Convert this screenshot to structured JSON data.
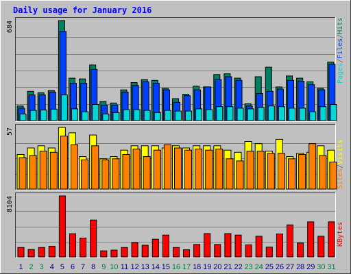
{
  "chart_data": [
    {
      "type": "bar",
      "title": "Daily usage for January 2016",
      "panel": "top",
      "categories": [
        "1",
        "2",
        "3",
        "4",
        "5",
        "6",
        "7",
        "8",
        "9",
        "10",
        "11",
        "12",
        "13",
        "14",
        "15",
        "16",
        "17",
        "18",
        "19",
        "20",
        "21",
        "22",
        "23",
        "24",
        "25",
        "26",
        "27",
        "28",
        "29",
        "30",
        "31"
      ],
      "y_max_label": "684",
      "ylim": [
        0,
        684
      ],
      "legend": [
        {
          "text": "Pages",
          "color": "#00d8d8"
        },
        {
          "text": "/",
          "color": "#606060"
        },
        {
          "text": "Files",
          "color": "#0040ff"
        },
        {
          "text": "/",
          "color": "#606060"
        },
        {
          "text": "Hits",
          "color": "#008060"
        }
      ],
      "series": [
        {
          "name": "Hits",
          "color": "#008060",
          "values": [
            100,
            200,
            190,
            205,
            684,
            290,
            285,
            380,
            130,
            120,
            210,
            260,
            280,
            275,
            220,
            150,
            180,
            235,
            230,
            315,
            320,
            290,
            115,
            300,
            365,
            230,
            305,
            290,
            265,
            220,
            400
          ]
        },
        {
          "name": "Files",
          "color": "#0040ff",
          "values": [
            85,
            175,
            175,
            195,
            610,
            255,
            255,
            350,
            105,
            105,
            195,
            240,
            265,
            255,
            210,
            125,
            170,
            210,
            230,
            280,
            300,
            275,
            100,
            185,
            200,
            215,
            275,
            270,
            245,
            210,
            385
          ]
        },
        {
          "name": "Pages",
          "color": "#00d8d8",
          "values": [
            45,
            70,
            72,
            78,
            175,
            80,
            60,
            110,
            45,
            55,
            75,
            75,
            70,
            55,
            70,
            65,
            65,
            80,
            75,
            95,
            95,
            85,
            80,
            90,
            100,
            95,
            85,
            85,
            60,
            95,
            110
          ]
        }
      ]
    },
    {
      "type": "bar",
      "panel": "middle",
      "categories": [
        "1",
        "2",
        "3",
        "4",
        "5",
        "6",
        "7",
        "8",
        "9",
        "10",
        "11",
        "12",
        "13",
        "14",
        "15",
        "16",
        "17",
        "18",
        "19",
        "20",
        "21",
        "22",
        "23",
        "24",
        "25",
        "26",
        "27",
        "28",
        "29",
        "30",
        "31"
      ],
      "y_max_label": "57",
      "ylim": [
        0,
        57
      ],
      "legend": [
        {
          "text": "Sites",
          "color": "#ff8000"
        },
        {
          "text": "/",
          "color": "#606060"
        },
        {
          "text": "Visits",
          "color": "#ffff00"
        }
      ],
      "series": [
        {
          "name": "Visits",
          "color": "#ffff00",
          "values": [
            32,
            38,
            40,
            38,
            57,
            52,
            30,
            50,
            28,
            30,
            36,
            40,
            40,
            40,
            38,
            40,
            38,
            40,
            40,
            40,
            36,
            34,
            44,
            42,
            35,
            46,
            30,
            33,
            34,
            40,
            36
          ]
        },
        {
          "name": "Sites",
          "color": "#ff8000",
          "values": [
            29,
            31,
            35,
            34,
            49,
            41,
            27,
            40,
            27,
            28,
            32,
            37,
            30,
            36,
            41,
            38,
            36,
            37,
            36,
            37,
            28,
            26,
            35,
            35,
            33,
            33,
            28,
            32,
            42,
            31,
            25
          ]
        }
      ]
    },
    {
      "type": "bar",
      "panel": "bottom",
      "categories": [
        "1",
        "2",
        "3",
        "4",
        "5",
        "6",
        "7",
        "8",
        "9",
        "10",
        "11",
        "12",
        "13",
        "14",
        "15",
        "16",
        "17",
        "18",
        "19",
        "20",
        "21",
        "22",
        "23",
        "24",
        "25",
        "26",
        "27",
        "28",
        "29",
        "30",
        "31"
      ],
      "y_max_label": "8104",
      "ylim": [
        0,
        8104
      ],
      "legend": [
        {
          "text": "KBytes",
          "color": "#ff0000"
        }
      ],
      "series": [
        {
          "name": "KBytes",
          "color": "#ff0000",
          "values": [
            1250,
            980,
            1250,
            1400,
            8104,
            3080,
            2500,
            4900,
            800,
            900,
            1250,
            1900,
            1550,
            2350,
            2900,
            1250,
            950,
            1650,
            3100,
            1650,
            3100,
            2900,
            1600,
            2750,
            1300,
            3050,
            4250,
            1850,
            4650,
            2750,
            4650
          ]
        }
      ]
    }
  ],
  "colors": {
    "background": "#c0c0c0",
    "panel": "#c0c0c0",
    "gridline": "#808080",
    "title": "#0000ff",
    "weekday_label": "#000080",
    "weekend_label": "#008040"
  },
  "weekend_days": [
    "2",
    "3",
    "9",
    "10",
    "16",
    "17",
    "23",
    "24",
    "30",
    "31"
  ]
}
